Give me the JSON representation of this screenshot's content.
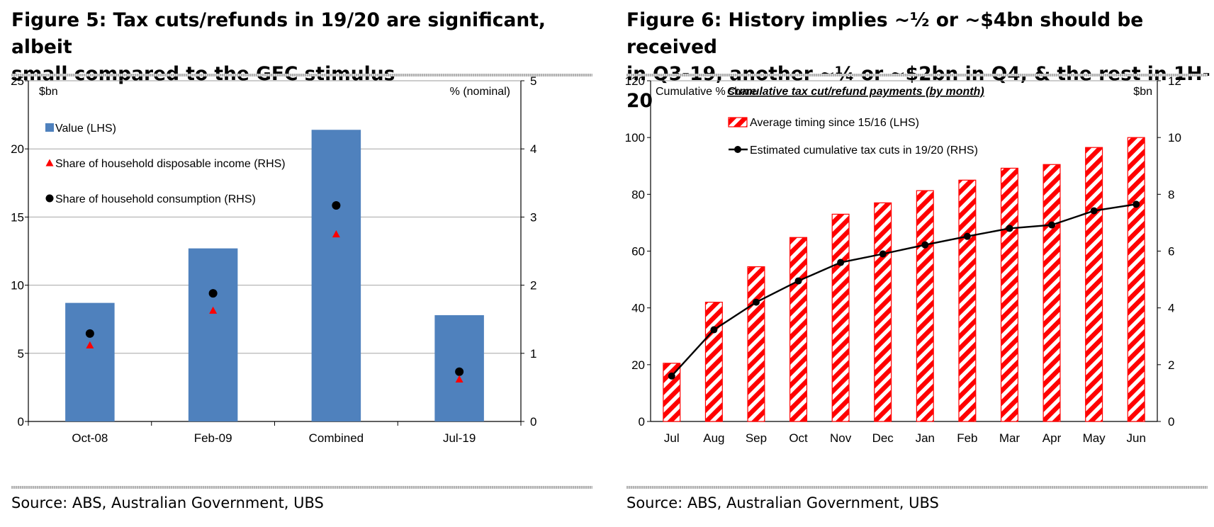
{
  "figure5": {
    "title_line1": "Figure 5: Tax cuts/refunds in 19/20 are significant, albeit",
    "title_line2": "small compared to the GFC stimulus",
    "source": "Source:  ABS, Australian Government, UBS"
  },
  "figure6": {
    "title_line1": "Figure 6: History implies ~½ or ~$4bn should be received",
    "title_line2": "in Q3-19, another ~¼ or ~$2bn in Q4, & the rest in 1H-20",
    "source": "Source:  ABS, Australian Government, UBS"
  },
  "chart_data": [
    {
      "type": "bar",
      "categories": [
        "Oct-08",
        "Feb-09",
        "Combined",
        "Jul-19"
      ],
      "y_left_label": "$bn",
      "y_right_label": "% (nominal)",
      "y_left_lim": [
        0,
        25
      ],
      "y_left_ticks": [
        0,
        5,
        10,
        15,
        20,
        25
      ],
      "y_right_lim": [
        0,
        5
      ],
      "y_right_ticks": [
        0,
        1,
        2,
        3,
        4,
        5
      ],
      "grid": true,
      "legend_position": "top-left",
      "series": [
        {
          "name": "Value (LHS)",
          "kind": "bar",
          "axis": "left",
          "color": "#4f81bd",
          "values": [
            8.7,
            12.7,
            21.4,
            7.8
          ]
        },
        {
          "name": "Share of household disposable income (RHS)",
          "kind": "marker-triangle",
          "axis": "right",
          "color": "#ff0000",
          "values": [
            1.12,
            1.63,
            2.75,
            0.62
          ]
        },
        {
          "name": "Share of household consumption (RHS)",
          "kind": "marker-circle",
          "axis": "right",
          "color": "#000000",
          "values": [
            1.29,
            1.88,
            3.17,
            0.73
          ]
        }
      ]
    },
    {
      "type": "bar",
      "title": "Cumulative tax cut/refund payments (by month)",
      "categories": [
        "Jul",
        "Aug",
        "Sep",
        "Oct",
        "Nov",
        "Dec",
        "Jan",
        "Feb",
        "Mar",
        "Apr",
        "May",
        "Jun"
      ],
      "y_left_label": "Cumulative % share",
      "y_right_label": "$bn",
      "y_left_lim": [
        0,
        120
      ],
      "y_left_ticks": [
        0,
        20,
        40,
        60,
        80,
        100,
        120
      ],
      "y_right_lim": [
        0,
        12
      ],
      "y_right_ticks": [
        0,
        2,
        4,
        6,
        8,
        10,
        12
      ],
      "grid": false,
      "legend_position": "top-center",
      "series": [
        {
          "name": "Average timing since 15/16 (LHS)",
          "kind": "bar-hatched",
          "axis": "left",
          "color": "#ff0000",
          "values": [
            20.5,
            42,
            54.5,
            64.8,
            73,
            77,
            81.3,
            85,
            89.2,
            90.5,
            96.5,
            100
          ]
        },
        {
          "name": "Estimated cumulative tax cuts in 19/20 (RHS)",
          "kind": "line-markers",
          "axis": "right",
          "color": "#000000",
          "values": [
            1.6,
            3.23,
            4.2,
            4.95,
            5.6,
            5.9,
            6.22,
            6.52,
            6.8,
            6.92,
            7.42,
            7.65
          ]
        }
      ]
    }
  ]
}
